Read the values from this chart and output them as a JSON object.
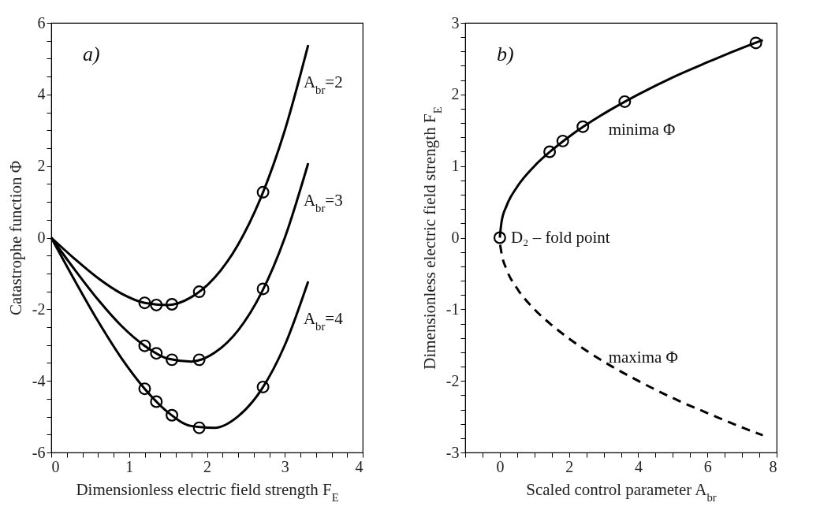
{
  "chart_data": [
    {
      "type": "line",
      "title": "a)",
      "xlabel": "Dimensionless electric field strength F$_{E}$",
      "ylabel": "Catastrophe function Φ",
      "x": [
        0,
        0.3,
        0.6,
        0.9,
        1.2,
        1.5,
        1.8,
        2.1,
        2.4,
        2.7,
        3.0,
        3.3
      ],
      "series": [
        {
          "name": "A$_{br}$=2",
          "color": "#000000",
          "values": [
            0,
            -0.59,
            -1.13,
            -1.56,
            -1.82,
            -1.88,
            -1.66,
            -1.11,
            -0.19,
            1.16,
            3.0,
            5.38
          ]
        },
        {
          "name": "A$_{br}$=3",
          "color": "#000000",
          "values": [
            0,
            -0.89,
            -1.73,
            -2.46,
            -3.02,
            -3.38,
            -3.46,
            -3.21,
            -2.59,
            -1.54,
            0.0,
            2.08
          ]
        },
        {
          "name": "A$_{br}$=4",
          "color": "#000000",
          "values": [
            0,
            -1.19,
            -2.33,
            -3.36,
            -4.22,
            -4.88,
            -5.26,
            -5.31,
            -4.99,
            -4.24,
            -3.0,
            -1.22
          ]
        },
        {
          "type": "scatter",
          "marker": "circle",
          "color": "#000000",
          "x": [
            1.2,
            1.35,
            1.55,
            1.9,
            2.72
          ],
          "values": [
            -1.82,
            -1.88,
            -1.86,
            -1.51,
            1.27
          ]
        },
        {
          "type": "scatter",
          "marker": "circle",
          "color": "#000000",
          "x": [
            1.2,
            1.35,
            1.55,
            1.9,
            2.72
          ],
          "values": [
            -3.02,
            -3.23,
            -3.41,
            -3.41,
            -1.43
          ]
        },
        {
          "type": "scatter",
          "marker": "circle",
          "color": "#000000",
          "x": [
            1.2,
            1.35,
            1.55,
            1.9,
            2.72
          ],
          "values": [
            -4.22,
            -4.58,
            -4.96,
            -5.31,
            -4.17
          ]
        }
      ],
      "xlim": [
        0,
        4
      ],
      "xticks": [
        0,
        {
          "value": 0.2,
          "label": null
        },
        {
          "value": 0.4,
          "label": null
        },
        {
          "value": 0.6,
          "label": null
        },
        {
          "value": 0.8,
          "label": null
        },
        1,
        {
          "value": 1.2,
          "label": null
        },
        {
          "value": 1.4,
          "label": null
        },
        {
          "value": 1.6,
          "label": null
        },
        {
          "value": 1.8,
          "label": null
        },
        2,
        {
          "value": 2.2,
          "label": null
        },
        {
          "value": 2.4,
          "label": null
        },
        {
          "value": 2.6,
          "label": null
        },
        {
          "value": 2.8,
          "label": null
        },
        3,
        {
          "value": 3.2,
          "label": null
        },
        {
          "value": 3.4,
          "label": null
        },
        {
          "value": 3.6,
          "label": null
        },
        {
          "value": 3.8,
          "label": null
        },
        4
      ],
      "ylim": [
        -6,
        6
      ],
      "yticks": [
        -6,
        {
          "value": -5.5,
          "label": null
        },
        {
          "value": -5,
          "label": null
        },
        {
          "value": -4.5,
          "label": null
        },
        -4,
        {
          "value": -3.5,
          "label": null
        },
        {
          "value": -3,
          "label": null
        },
        {
          "value": -2.5,
          "label": null
        },
        -2,
        {
          "value": -1.5,
          "label": null
        },
        {
          "value": -1,
          "label": null
        },
        {
          "value": -0.5,
          "label": null
        },
        0,
        {
          "value": 0.5,
          "label": null
        },
        {
          "value": 1,
          "label": null
        },
        {
          "value": 1.5,
          "label": null
        },
        2,
        {
          "value": 2.5,
          "label": null
        },
        {
          "value": 3,
          "label": null
        },
        {
          "value": 3.5,
          "label": null
        },
        4,
        {
          "value": 4.5,
          "label": null
        },
        {
          "value": 5,
          "label": null
        },
        {
          "value": 5.5,
          "label": null
        },
        6
      ]
    },
    {
      "type": "line",
      "title": "b)",
      "xlabel": "Scaled control parameter A$_{br}$",
      "ylabel": "Dimensionless electric field strength F$_{E}$",
      "series": [
        {
          "color": "#000000",
          "x": [
            0,
            0.05,
            0.2,
            0.5,
            1,
            1.5,
            2,
            3,
            4,
            5,
            6,
            7,
            7.6
          ],
          "values": [
            0,
            0.22,
            0.45,
            0.71,
            1,
            1.22,
            1.41,
            1.73,
            2,
            2.24,
            2.45,
            2.65,
            2.76
          ]
        },
        {
          "color": "#000000",
          "line_style": "dashed",
          "x": [
            0.01,
            0.05,
            0.2,
            0.5,
            1,
            1.5,
            2,
            3,
            4,
            5,
            6,
            7,
            7.6
          ],
          "values": [
            -0.1,
            -0.22,
            -0.45,
            -0.71,
            -1,
            -1.22,
            -1.41,
            -1.73,
            -2,
            -2.24,
            -2.45,
            -2.65,
            -2.76
          ]
        },
        {
          "type": "scatter",
          "marker": "circle",
          "color": "#000000",
          "x": [
            1.44,
            1.82,
            2.4,
            3.61,
            7.4
          ],
          "values": [
            1.2,
            1.35,
            1.55,
            1.9,
            2.72
          ]
        },
        {
          "type": "scatter",
          "marker": "circle",
          "color": "#000000",
          "x": [
            0
          ],
          "values": [
            0
          ]
        }
      ],
      "annotations": [
        {
          "text": "D₂ – fold point",
          "x": 0,
          "y": 0
        },
        "minima Φ",
        "maxima Φ"
      ],
      "xlim": [
        -1,
        8
      ],
      "xticks": [
        {
          "value": -1,
          "label": null
        },
        {
          "value": -0.5,
          "label": null
        },
        0,
        {
          "value": 0.5,
          "label": null
        },
        {
          "value": 1,
          "label": null
        },
        {
          "value": 1.5,
          "label": null
        },
        2,
        {
          "value": 2.5,
          "label": null
        },
        {
          "value": 3,
          "label": null
        },
        {
          "value": 3.5,
          "label": null
        },
        4,
        {
          "value": 4.5,
          "label": null
        },
        {
          "value": 5,
          "label": null
        },
        {
          "value": 5.5,
          "label": null
        },
        6,
        {
          "value": 6.5,
          "label": null
        },
        {
          "value": 7,
          "label": null
        },
        {
          "value": 7.5,
          "label": null
        },
        8
      ],
      "ylim": [
        -3,
        3
      ],
      "yticks": [
        -3,
        {
          "value": -2.8,
          "label": null
        },
        {
          "value": -2.6,
          "label": null
        },
        {
          "value": -2.4,
          "label": null
        },
        {
          "value": -2.2,
          "label": null
        },
        -2,
        {
          "value": -1.8,
          "label": null
        },
        {
          "value": -1.6,
          "label": null
        },
        {
          "value": -1.4,
          "label": null
        },
        {
          "value": -1.2,
          "label": null
        },
        -1,
        {
          "value": -0.8,
          "label": null
        },
        {
          "value": -0.6,
          "label": null
        },
        {
          "value": -0.4,
          "label": null
        },
        {
          "value": -0.2,
          "label": null
        },
        0,
        {
          "value": 0.2,
          "label": null
        },
        {
          "value": 0.4,
          "label": null
        },
        {
          "value": 0.6,
          "label": null
        },
        {
          "value": 0.8,
          "label": null
        },
        1,
        {
          "value": 1.2,
          "label": null
        },
        {
          "value": 1.4,
          "label": null
        },
        {
          "value": 1.6,
          "label": null
        },
        {
          "value": 1.8,
          "label": null
        },
        2,
        {
          "value": 2.2,
          "label": null
        },
        {
          "value": 2.4,
          "label": null
        },
        {
          "value": 2.6,
          "label": null
        },
        {
          "value": 2.8,
          "label": null
        },
        3
      ]
    }
  ]
}
